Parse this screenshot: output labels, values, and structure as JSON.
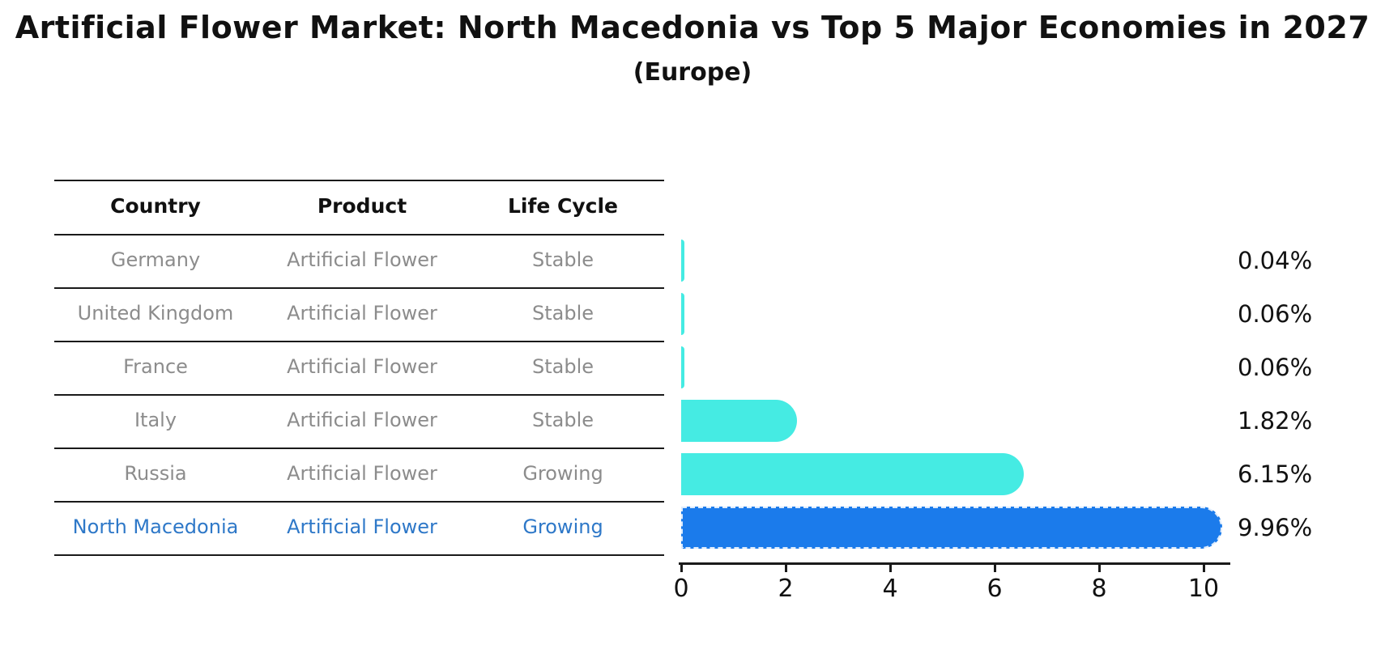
{
  "title": "Artificial Flower Market: North Macedonia vs Top 5 Major Economies in 2027",
  "subtitle": "(Europe)",
  "table": {
    "headers": [
      "Country",
      "Product",
      "Life Cycle"
    ],
    "rows": [
      {
        "country": "Germany",
        "product": "Artificial Flower",
        "life_cycle": "Stable",
        "highlight": false
      },
      {
        "country": "United Kingdom",
        "product": "Artificial Flower",
        "life_cycle": "Stable",
        "highlight": false
      },
      {
        "country": "France",
        "product": "Artificial Flower",
        "life_cycle": "Stable",
        "highlight": false
      },
      {
        "country": "Italy",
        "product": "Artificial Flower",
        "life_cycle": "Stable",
        "highlight": false
      },
      {
        "country": "Russia",
        "product": "Artificial Flower",
        "life_cycle": "Growing",
        "highlight": false
      },
      {
        "country": "North Macedonia",
        "product": "Artificial Flower",
        "life_cycle": "Growing",
        "highlight": true
      }
    ]
  },
  "chart_data": {
    "type": "bar",
    "orientation": "horizontal",
    "title": "Artificial Flower Market: North Macedonia vs Top 5 Major Economies in 2027",
    "subtitle": "(Europe)",
    "categories": [
      "Germany",
      "United Kingdom",
      "France",
      "Italy",
      "Russia",
      "North Macedonia"
    ],
    "values": [
      0.04,
      0.06,
      0.06,
      1.82,
      6.15,
      9.96
    ],
    "value_labels": [
      "0.04%",
      "0.06%",
      "0.06%",
      "1.82%",
      "6.15%",
      "9.96%"
    ],
    "unit": "%",
    "xlim": [
      0,
      10.5
    ],
    "x_ticks": [
      0,
      2,
      4,
      6,
      8,
      10
    ],
    "grid": false,
    "legend": "none",
    "highlight_category": "North Macedonia"
  },
  "colors": {
    "background": "#ffffff",
    "bar_default": "#45EBE3",
    "bar_highlight": "#1B7BEB",
    "text_highlight": "#2E78C8",
    "text_row": "#8C8C8C",
    "text_header": "#111111",
    "axis": "#1a1a1a"
  }
}
